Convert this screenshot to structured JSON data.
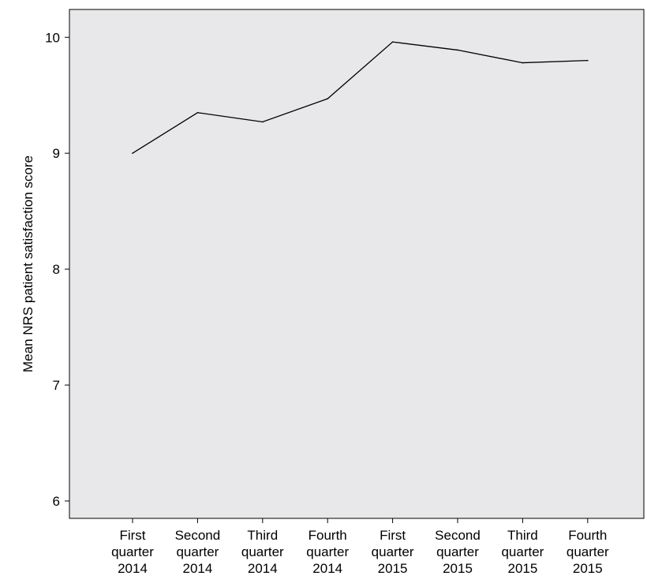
{
  "chart_data": {
    "type": "line",
    "title": "",
    "xlabel": "",
    "ylabel": "Mean NRS patient satisfaction score",
    "categories": [
      [
        "First",
        "quarter",
        "2014"
      ],
      [
        "Second",
        "quarter",
        "2014"
      ],
      [
        "Third",
        "quarter",
        "2014"
      ],
      [
        "Fourth",
        "quarter",
        "2014"
      ],
      [
        "First",
        "quarter",
        "2015"
      ],
      [
        "Second",
        "quarter",
        "2015"
      ],
      [
        "Third",
        "quarter",
        "2015"
      ],
      [
        "Fourth",
        "quarter",
        "2015"
      ]
    ],
    "series": [
      {
        "values": [
          9.0,
          9.35,
          9.27,
          9.47,
          9.96,
          9.89,
          9.78,
          9.8
        ]
      }
    ],
    "ylim": [
      5.85,
      10.24
    ],
    "yticks": [
      6,
      7,
      8,
      9,
      10
    ],
    "grid": false,
    "legend": "none",
    "colors": {
      "plot_background": "#e8e8ea",
      "line": "#000000",
      "axis": "#000000"
    }
  }
}
